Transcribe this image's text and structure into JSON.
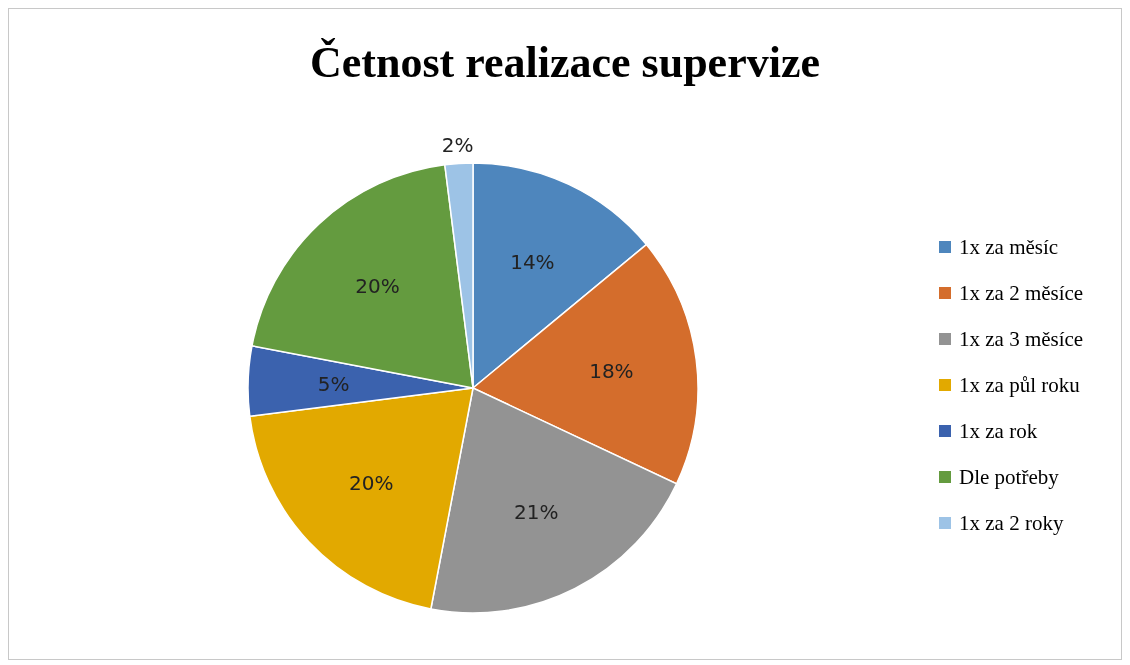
{
  "chart_data": {
    "type": "pie",
    "title": "Četnost realizace supervize",
    "categories": [
      "1x za měsíc",
      "1x za 2 měsíce",
      "1x za 3 měsíce",
      "1x za půl roku",
      "1x za rok",
      "Dle potřeby",
      "1x za 2 roky"
    ],
    "values": [
      14,
      18,
      21,
      20,
      5,
      20,
      2
    ],
    "value_labels": [
      "14%",
      "18%",
      "21%",
      "20%",
      "5%",
      "20%",
      "2%"
    ],
    "colors": [
      "#4e86bd",
      "#d46d2c",
      "#939393",
      "#e2a900",
      "#3b62ae",
      "#649b3f",
      "#9dc3e6"
    ],
    "legend": "right"
  }
}
